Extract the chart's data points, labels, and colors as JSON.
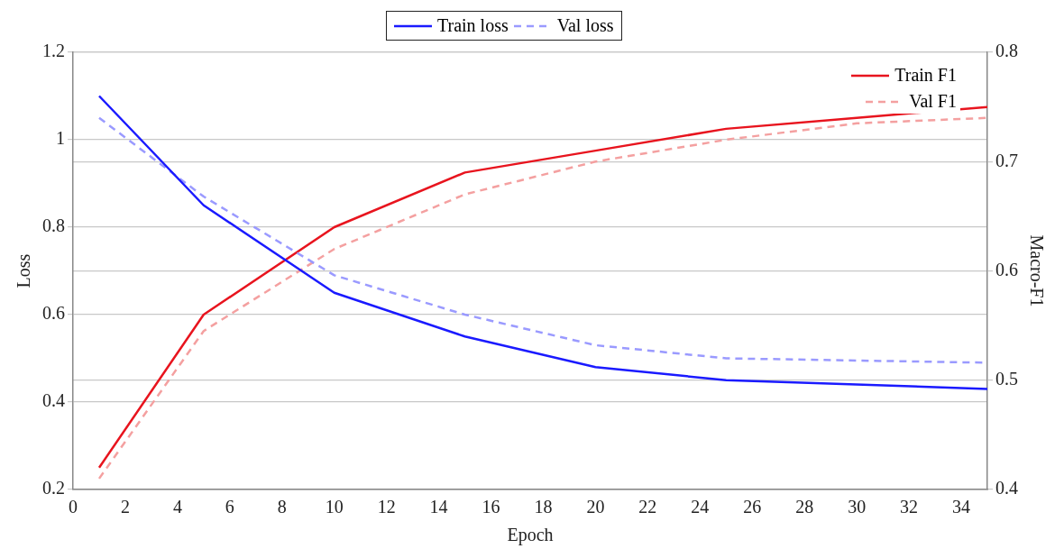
{
  "chart_data": {
    "type": "line",
    "xlabel": "Epoch",
    "ylabel": "Loss",
    "y2label": "Macro-F1",
    "xlim": [
      0,
      35
    ],
    "xticks": [
      0,
      2,
      4,
      6,
      8,
      10,
      12,
      14,
      16,
      18,
      20,
      22,
      24,
      26,
      28,
      30,
      32,
      34
    ],
    "ylim": [
      0.2,
      1.2
    ],
    "yticks": [
      0.2,
      0.4,
      0.6,
      0.8,
      1,
      1.2
    ],
    "y2lim": [
      0.4,
      0.8
    ],
    "y2ticks": [
      0.4,
      0.5,
      0.6,
      0.7,
      0.8
    ],
    "grid": "y",
    "legend": "top",
    "marker": "none",
    "series": [
      {
        "name": "Train loss",
        "color": "#1a1aff",
        "line_style": "solid",
        "x": [
          1,
          5,
          10,
          15,
          20,
          25,
          35
        ],
        "values": [
          1.1,
          0.85,
          0.65,
          0.55,
          0.48,
          0.45,
          0.43
        ]
      },
      {
        "name": "Val loss",
        "color": "#9a9aff",
        "line_style": "dashed",
        "x": [
          1,
          5,
          10,
          15,
          20,
          25,
          35
        ],
        "values": [
          1.05,
          0.87,
          0.69,
          0.6,
          0.53,
          0.5,
          0.49
        ]
      },
      {
        "name": "Train F1",
        "color": "#e8141e",
        "line_style": "solid",
        "axis": "y2",
        "x": [
          1,
          5,
          10,
          15,
          20,
          25,
          30,
          35
        ],
        "values": [
          0.42,
          0.56,
          0.64,
          0.69,
          0.71,
          0.73,
          0.74,
          0.75
        ]
      },
      {
        "name": "Val F1",
        "color": "#f4a0a0",
        "line_style": "dashed",
        "axis": "y2",
        "x": [
          1,
          5,
          10,
          15,
          20,
          25,
          30,
          35
        ],
        "values": [
          0.41,
          0.545,
          0.62,
          0.67,
          0.7,
          0.72,
          0.735,
          0.74
        ]
      }
    ]
  }
}
